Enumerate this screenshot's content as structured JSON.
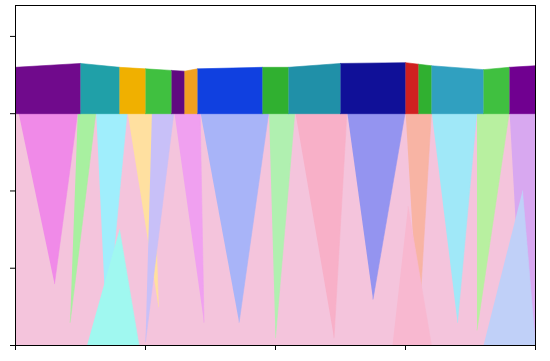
{
  "chart_data": {
    "type": "polygon",
    "xlim": [
      0,
      4
    ],
    "ylim": [
      0,
      4.4
    ],
    "xticks": [
      0,
      1,
      2,
      3,
      4
    ],
    "yticks": [
      0,
      1,
      2,
      3,
      4
    ],
    "tick_labels": false,
    "grid": false,
    "grains": [
      {
        "color": "#f4c4dc",
        "x": [
          0,
          4,
          4,
          0
        ],
        "y": [
          0,
          0,
          3.04,
          3.04
        ]
      },
      {
        "color": "#f08ae8",
        "x": [
          0.02,
          0.48,
          0.3
        ],
        "y": [
          3.04,
          3.04,
          0.8
        ]
      },
      {
        "color": "#a8f0a0",
        "x": [
          0.48,
          0.62,
          0.42
        ],
        "y": [
          3.04,
          3.04,
          0.3
        ]
      },
      {
        "color": "#a0eefc",
        "x": [
          0.62,
          0.86,
          0.7
        ],
        "y": [
          3.04,
          3.04,
          0.2
        ]
      },
      {
        "color": "#ffe0a0",
        "x": [
          0.86,
          1.05,
          1.1
        ],
        "y": [
          3.04,
          3.04,
          0.5
        ]
      },
      {
        "color": "#c8c0f8",
        "x": [
          1.05,
          1.22,
          1.0
        ],
        "y": [
          3.04,
          3.04,
          0.05
        ]
      },
      {
        "color": "#f0a0f0",
        "x": [
          1.22,
          1.42,
          1.45
        ],
        "y": [
          3.04,
          3.04,
          0.3
        ]
      },
      {
        "color": "#a8b4f8",
        "x": [
          1.42,
          1.95,
          1.72
        ],
        "y": [
          3.04,
          3.04,
          0.3
        ]
      },
      {
        "color": "#b0f0b0",
        "x": [
          1.95,
          2.15,
          2.0
        ],
        "y": [
          3.04,
          3.04,
          0.1
        ]
      },
      {
        "color": "#f8b0c8",
        "x": [
          2.15,
          2.55,
          2.45
        ],
        "y": [
          3.04,
          3.04,
          0.1
        ]
      },
      {
        "color": "#9494f0",
        "x": [
          2.55,
          3.0,
          2.75
        ],
        "y": [
          3.04,
          3.04,
          0.6
        ]
      },
      {
        "color": "#f8b4a4",
        "x": [
          3.0,
          3.2,
          3.1
        ],
        "y": [
          3.04,
          3.04,
          0.2
        ]
      },
      {
        "color": "#a0e8f8",
        "x": [
          3.2,
          3.55,
          3.4
        ],
        "y": [
          3.04,
          3.04,
          0.3
        ]
      },
      {
        "color": "#b8f0a0",
        "x": [
          3.55,
          3.8,
          3.55
        ],
        "y": [
          3.04,
          3.04,
          0.2
        ]
      },
      {
        "color": "#d8a8f0",
        "x": [
          3.8,
          4.0,
          4.0,
          3.9
        ],
        "y": [
          3.04,
          3.04,
          0,
          0
        ]
      },
      {
        "color": "#a0f8f0",
        "x": [
          0.55,
          0.95,
          0.8
        ],
        "y": [
          0,
          0,
          1.5
        ]
      },
      {
        "color": "#f8b8d0",
        "x": [
          2.9,
          3.2,
          3.02
        ],
        "y": [
          0,
          0,
          1.8
        ]
      },
      {
        "color": "#c0d0f8",
        "x": [
          3.6,
          4.0,
          3.9
        ],
        "y": [
          0,
          0,
          2.0
        ]
      },
      {
        "color": "#700a8c",
        "x": [
          0,
          0.5,
          0.5,
          0
        ],
        "y": [
          3.0,
          3.0,
          3.65,
          3.6
        ]
      },
      {
        "color": "#20a0a8",
        "x": [
          0.5,
          0.8,
          0.8,
          0.5
        ],
        "y": [
          3.0,
          3.0,
          3.6,
          3.65
        ]
      },
      {
        "color": "#f0b000",
        "x": [
          0.8,
          1.0,
          1.0,
          0.8
        ],
        "y": [
          3.0,
          3.0,
          3.58,
          3.6
        ]
      },
      {
        "color": "#40c040",
        "x": [
          1.0,
          1.2,
          1.2,
          1.0
        ],
        "y": [
          3.0,
          3.0,
          3.56,
          3.58
        ]
      },
      {
        "color": "#600880",
        "x": [
          1.2,
          1.3,
          1.3,
          1.2
        ],
        "y": [
          3.0,
          3.0,
          3.55,
          3.56
        ]
      },
      {
        "color": "#f0a020",
        "x": [
          1.3,
          1.4,
          1.4,
          1.3
        ],
        "y": [
          3.0,
          3.0,
          3.58,
          3.55
        ]
      },
      {
        "color": "#1040e0",
        "x": [
          1.4,
          1.9,
          1.9,
          1.4
        ],
        "y": [
          3.0,
          3.0,
          3.6,
          3.58
        ]
      },
      {
        "color": "#30b030",
        "x": [
          1.9,
          2.1,
          2.1,
          1.9
        ],
        "y": [
          3.0,
          3.0,
          3.6,
          3.6
        ]
      },
      {
        "color": "#2090a8",
        "x": [
          2.1,
          2.5,
          2.5,
          2.1
        ],
        "y": [
          3.0,
          3.0,
          3.65,
          3.6
        ]
      },
      {
        "color": "#101098",
        "x": [
          2.5,
          3.0,
          3.0,
          2.5
        ],
        "y": [
          3.0,
          3.0,
          3.66,
          3.65
        ]
      },
      {
        "color": "#d02020",
        "x": [
          3.0,
          3.1,
          3.1,
          3.0
        ],
        "y": [
          3.0,
          3.0,
          3.64,
          3.66
        ]
      },
      {
        "color": "#30b030",
        "x": [
          3.1,
          3.2,
          3.2,
          3.1
        ],
        "y": [
          3.0,
          3.0,
          3.62,
          3.64
        ]
      },
      {
        "color": "#30a0c0",
        "x": [
          3.2,
          3.6,
          3.6,
          3.2
        ],
        "y": [
          3.0,
          3.0,
          3.57,
          3.62
        ]
      },
      {
        "color": "#40c040",
        "x": [
          3.6,
          3.8,
          3.8,
          3.6
        ],
        "y": [
          3.0,
          3.0,
          3.6,
          3.57
        ]
      },
      {
        "color": "#700090",
        "x": [
          3.8,
          4.0,
          4.0,
          3.8
        ],
        "y": [
          3.0,
          3.0,
          3.62,
          3.6
        ]
      }
    ]
  }
}
